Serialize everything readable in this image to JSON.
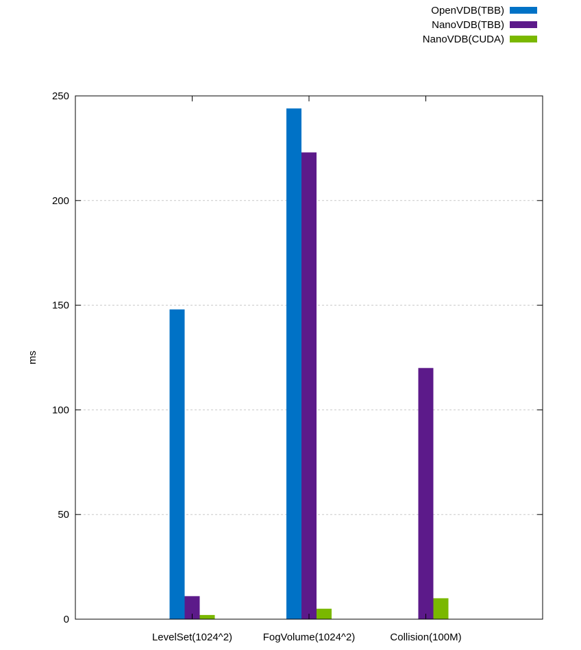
{
  "chart_data": {
    "type": "bar",
    "title": "",
    "xlabel": "",
    "ylabel": "ms",
    "ylim": [
      0,
      250
    ],
    "yticks": [
      0,
      50,
      100,
      150,
      200,
      250
    ],
    "grid": true,
    "legend_position": "top-right",
    "categories": [
      "LevelSet(1024^2)",
      "FogVolume(1024^2)",
      "Collision(100M)"
    ],
    "series": [
      {
        "name": "OpenVDB(TBB)",
        "color": "#0072c6",
        "values": [
          148,
          244,
          null
        ]
      },
      {
        "name": "NanoVDB(TBB)",
        "color": "#5c1a8a",
        "values": [
          11,
          223,
          120
        ]
      },
      {
        "name": "NanoVDB(CUDA)",
        "color": "#7ab800",
        "values": [
          2,
          5,
          10
        ]
      }
    ]
  }
}
